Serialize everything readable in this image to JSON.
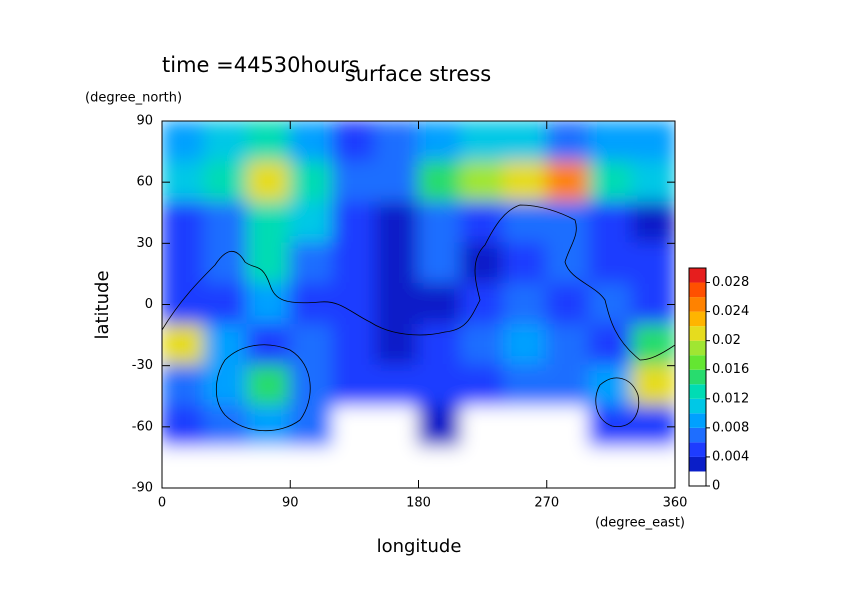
{
  "chart_data": {
    "type": "contour",
    "title": "surface stress",
    "subtitle": "time =44530hours",
    "x_label": "longitude",
    "x_unit": "(degree_east)",
    "y_label": "latitude",
    "y_unit": "(degree_north)",
    "xlim": [
      0,
      360
    ],
    "xticks": [
      0,
      90,
      180,
      270,
      360
    ],
    "ylim": [
      -90,
      90
    ],
    "yticks": [
      -90,
      -60,
      -30,
      0,
      30,
      60,
      90
    ],
    "x": [
      15,
      45,
      75,
      105,
      135,
      165,
      195,
      225,
      255,
      285,
      315,
      345
    ],
    "y": [
      80,
      60,
      40,
      20,
      0,
      -20,
      -40,
      -60,
      -80
    ],
    "z": [
      [
        0.008,
        0.01,
        0.012,
        0.008,
        0.004,
        0.006,
        0.008,
        0.01,
        0.01,
        0.006,
        0.008,
        0.008
      ],
      [
        0.01,
        0.012,
        0.02,
        0.012,
        0.006,
        0.006,
        0.014,
        0.018,
        0.02,
        0.024,
        0.012,
        0.01
      ],
      [
        0.004,
        0.006,
        0.012,
        0.01,
        0.004,
        0.002,
        0.006,
        0.004,
        0.006,
        0.006,
        0.004,
        0.002
      ],
      [
        0.004,
        0.006,
        0.012,
        0.006,
        0.004,
        0.002,
        0.006,
        0.002,
        0.004,
        0.006,
        0.004,
        0.004
      ],
      [
        0.004,
        0.004,
        0.008,
        0.004,
        0.004,
        0.002,
        0.002,
        0.004,
        0.006,
        0.004,
        0.006,
        0.004
      ],
      [
        0.02,
        0.008,
        0.004,
        0.006,
        0.004,
        0.002,
        0.004,
        0.006,
        0.008,
        0.006,
        0.004,
        0.014
      ],
      [
        0.006,
        0.008,
        0.014,
        0.006,
        0.004,
        0.004,
        0.004,
        0.004,
        0.006,
        0.006,
        0.008,
        0.02
      ],
      [
        0.004,
        0.006,
        0.008,
        0.006,
        0,
        0,
        0.002,
        0,
        0,
        0,
        0.004,
        0.004
      ],
      [
        0,
        0,
        0,
        0,
        0,
        0,
        0,
        0,
        0,
        0,
        0,
        0
      ]
    ],
    "clim": [
      0,
      0.03
    ],
    "levels": [
      0,
      0.002,
      0.004,
      0.006,
      0.008,
      0.01,
      0.012,
      0.014,
      0.016,
      0.018,
      0.02,
      0.022,
      0.024,
      0.026,
      0.028,
      0.03
    ],
    "colors": [
      "#ffffff",
      "#0a1ec8",
      "#1e3cff",
      "#1e6eff",
      "#00a0ff",
      "#00c8e6",
      "#00dcb4",
      "#28dc6e",
      "#64e632",
      "#a0e632",
      "#e6dc1e",
      "#ffb400",
      "#ff8200",
      "#ff5000",
      "#e61e1e"
    ],
    "cticks": [
      0,
      0.004,
      0.008,
      0.012,
      0.016,
      0.02,
      0.024,
      0.028
    ]
  }
}
